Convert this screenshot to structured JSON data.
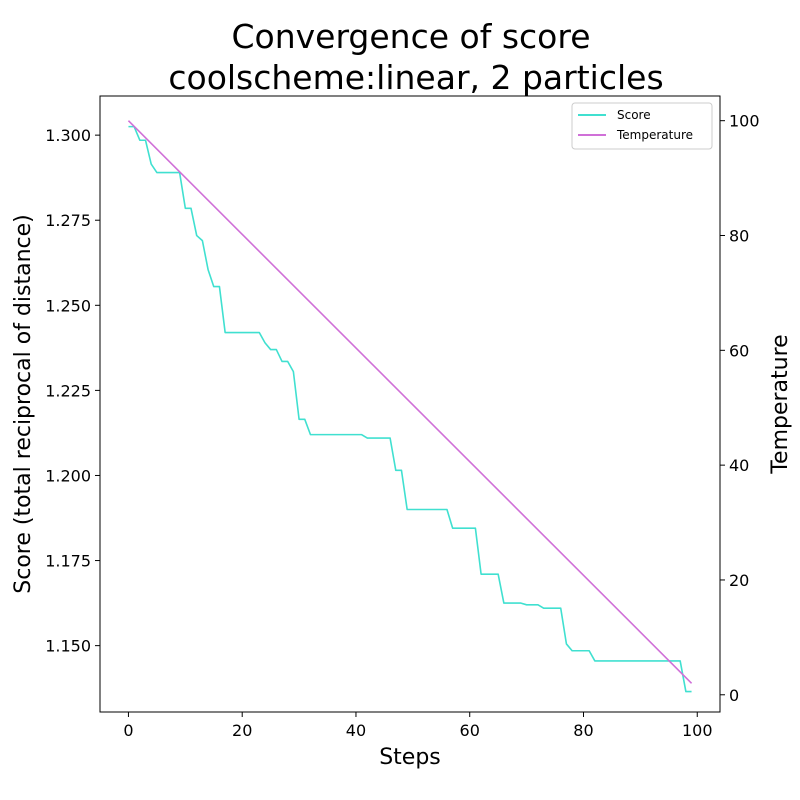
{
  "chart_data": {
    "type": "line",
    "title": "Convergence of score",
    "subtitle": "coolscheme:linear, 2 particles",
    "xlabel": "Steps",
    "ylabel": "Score (total reciprocal of distance)",
    "ylabel_right": "Temperature",
    "xlim": [
      -5,
      104
    ],
    "ylim": [
      1.1305,
      1.3115
    ],
    "ylim_right": [
      -3.0,
      104.3
    ],
    "x_ticks": [
      0,
      20,
      40,
      60,
      80,
      100
    ],
    "y_ticks": [
      1.15,
      1.175,
      1.2,
      1.225,
      1.25,
      1.275,
      1.3
    ],
    "y_ticks_right": [
      0,
      20,
      40,
      60,
      80,
      100
    ],
    "y_tick_labels": [
      "1.150",
      "1.175",
      "1.200",
      "1.225",
      "1.250",
      "1.275",
      "1.300"
    ],
    "y_tick_labels_right": [
      "0",
      "20",
      "40",
      "60",
      "80",
      "100"
    ],
    "legend_position": "top-right",
    "grid": false,
    "series": [
      {
        "name": "Score",
        "axis": "left",
        "color": "#40e0d0",
        "x": [
          0,
          1,
          2,
          3,
          4,
          5,
          6,
          7,
          8,
          9,
          10,
          11,
          12,
          13,
          14,
          15,
          16,
          17,
          18,
          19,
          20,
          21,
          22,
          23,
          24,
          25,
          26,
          27,
          28,
          29,
          30,
          31,
          32,
          33,
          34,
          35,
          36,
          37,
          38,
          39,
          40,
          41,
          42,
          43,
          44,
          45,
          46,
          47,
          48,
          49,
          50,
          51,
          52,
          53,
          54,
          55,
          56,
          57,
          58,
          59,
          60,
          61,
          62,
          63,
          64,
          65,
          66,
          67,
          68,
          69,
          70,
          71,
          72,
          73,
          74,
          75,
          76,
          77,
          78,
          79,
          80,
          81,
          82,
          83,
          84,
          85,
          86,
          87,
          88,
          89,
          90,
          91,
          92,
          93,
          94,
          95,
          96,
          97,
          98,
          99
        ],
        "values": [
          1.3025,
          1.3025,
          1.2985,
          1.2985,
          1.2915,
          1.289,
          1.289,
          1.289,
          1.289,
          1.289,
          1.2785,
          1.2785,
          1.2705,
          1.269,
          1.2605,
          1.2555,
          1.2555,
          1.242,
          1.242,
          1.242,
          1.242,
          1.242,
          1.242,
          1.242,
          1.239,
          1.237,
          1.237,
          1.2335,
          1.2335,
          1.2305,
          1.2165,
          1.2165,
          1.212,
          1.212,
          1.212,
          1.212,
          1.212,
          1.212,
          1.212,
          1.212,
          1.212,
          1.212,
          1.211,
          1.211,
          1.211,
          1.211,
          1.211,
          1.2015,
          1.2015,
          1.19,
          1.19,
          1.19,
          1.19,
          1.19,
          1.19,
          1.19,
          1.19,
          1.1845,
          1.1845,
          1.1845,
          1.1845,
          1.1845,
          1.171,
          1.171,
          1.171,
          1.171,
          1.1625,
          1.1625,
          1.1625,
          1.1625,
          1.162,
          1.162,
          1.162,
          1.161,
          1.161,
          1.161,
          1.161,
          1.1505,
          1.1485,
          1.1485,
          1.1485,
          1.1485,
          1.1455,
          1.1455,
          1.1455,
          1.1455,
          1.1455,
          1.1455,
          1.1455,
          1.1455,
          1.1455,
          1.1455,
          1.1455,
          1.1455,
          1.1455,
          1.1455,
          1.1455,
          1.1455,
          1.1365,
          1.1365
        ]
      },
      {
        "name": "Temperature",
        "axis": "right",
        "color": "#d070d8",
        "x": [
          0,
          99
        ],
        "values": [
          100,
          2
        ]
      }
    ]
  }
}
